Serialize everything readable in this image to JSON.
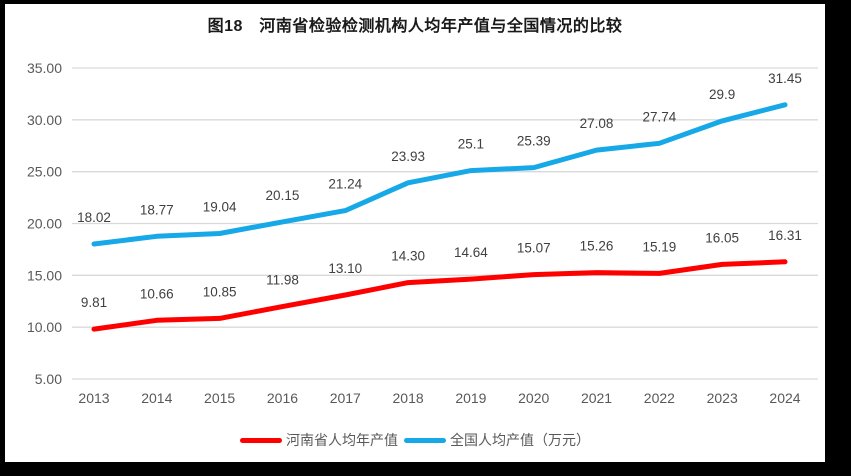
{
  "title": "图18　河南省检验检测机构人均年产值与全国情况的比较",
  "chart_data": {
    "type": "line",
    "categories": [
      "2013",
      "2014",
      "2015",
      "2016",
      "2017",
      "2018",
      "2019",
      "2020",
      "2021",
      "2022",
      "2023",
      "2024"
    ],
    "series": [
      {
        "name": "河南省人均年产值",
        "color": "#ff0000",
        "values": [
          9.81,
          10.66,
          10.85,
          11.98,
          13.1,
          14.3,
          14.64,
          15.07,
          15.26,
          15.19,
          16.05,
          16.31
        ],
        "labels": [
          "9.81",
          "10.66",
          "10.85",
          "11.98",
          "13.10",
          "14.30",
          "14.64",
          "15.07",
          "15.26",
          "15.19",
          "16.05",
          "16.31"
        ]
      },
      {
        "name": "全国人均产值（万元）",
        "color": "#17a8e8",
        "values": [
          18.02,
          18.77,
          19.04,
          20.15,
          21.24,
          23.93,
          25.1,
          25.39,
          27.08,
          27.74,
          29.9,
          31.45
        ],
        "labels": [
          "18.02",
          "18.77",
          "19.04",
          "20.15",
          "21.24",
          "23.93",
          "25.1",
          "25.39",
          "27.08",
          "27.74",
          "29.9",
          "31.45"
        ]
      }
    ],
    "ylim": [
      5,
      35
    ],
    "yticks": [
      5,
      10,
      15,
      20,
      25,
      30,
      35
    ],
    "ytick_labels": [
      "5.00",
      "10.00",
      "15.00",
      "20.00",
      "25.00",
      "30.00",
      "35.00"
    ],
    "grid": true,
    "legend_position": "bottom"
  },
  "colors": {
    "grid": "#d9d9d9",
    "axis_text": "#595959",
    "data_label": "#404040",
    "frame_border": "#000000",
    "background": "#ffffff"
  }
}
